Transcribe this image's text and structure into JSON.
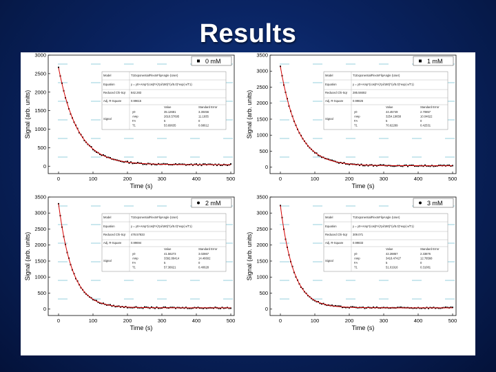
{
  "slide": {
    "title": "Results"
  },
  "colors": {
    "background": "#0a2463",
    "fit_line": "#d40000",
    "data_points": "#000000",
    "faint_label": "#9fd3e0"
  },
  "chart_data": [
    {
      "type": "line",
      "legend": "0 mM",
      "legend_marker": "square",
      "xlabel": "Time (s)",
      "ylabel": "Signal (arb. units)",
      "xlim": [
        -30,
        510
      ],
      "ylim": [
        -200,
        3000
      ],
      "x_ticks": [
        0,
        100,
        200,
        300,
        400,
        500
      ],
      "y_ticks": [
        0,
        500,
        1000,
        1500,
        2000,
        2500,
        3000
      ],
      "model": {
        "y0": 40,
        "amp": 2620,
        "t1": 55
      },
      "fit_table": {
        "model_label": "Model",
        "model_value": "T1ExponentialFlexInFlipAngle (User)",
        "equation_label": "Equation",
        "equation_value": "y = y0+Amp*(cos(FA)*pi/180)^(x/5.0)*exp(-x/T1)",
        "chi_label": "Reduced Chi-Sqr",
        "chi_value": "842.283",
        "r2_label": "Adj. R-Square",
        "r2_value": "0.99615",
        "value_header": "Value",
        "error_header": "Standard Error",
        "signal_label": "Signal",
        "params": [
          {
            "name": "y0",
            "value": "35.12681",
            "error": "3.30456"
          },
          {
            "name": "Amp",
            "value": "2616.57695",
            "error": "11.1935"
          },
          {
            "name": "FA",
            "value": "5",
            "error": "0"
          },
          {
            "name": "T1",
            "value": "53.69635",
            "error": "0.68612"
          }
        ]
      }
    },
    {
      "type": "line",
      "legend": "1 mM",
      "legend_marker": "square",
      "xlabel": "Time (s)",
      "ylabel": "Signal (arb. units)",
      "xlim": [
        -30,
        510
      ],
      "ylim": [
        -200,
        3500
      ],
      "x_ticks": [
        0,
        100,
        200,
        300,
        400,
        500
      ],
      "y_ticks": [
        0,
        500,
        1000,
        1500,
        2000,
        2500,
        3000,
        3500
      ],
      "model": {
        "y0": 45,
        "amp": 3100,
        "t1": 50
      },
      "fit_table": {
        "model_label": "Model",
        "model_value": "T1ExponentialFlexInFlipAngle (User)",
        "equation_label": "Equation",
        "equation_value": "y = y0+Amp*(cos(FA)*pi/180)^(x/5.0)*exp(-x/T1)",
        "chi_label": "Reduced Chi-Sqr",
        "chi_value": "285.58482",
        "r2_label": "Adj. R-Square",
        "r2_value": "0.99826",
        "value_header": "Value",
        "error_header": "Standard Error",
        "signal_label": "Signal",
        "params": [
          {
            "name": "y0",
            "value": "44.45749",
            "error": "2.70857"
          },
          {
            "name": "Amp",
            "value": "3254.19658",
            "error": "10.04622"
          },
          {
            "name": "FA",
            "value": "5",
            "error": "0"
          },
          {
            "name": "T1",
            "value": "70.62289",
            "error": "0.42531"
          }
        ]
      }
    },
    {
      "type": "line",
      "legend": "2 mM",
      "legend_marker": "circle",
      "xlabel": "Time (s)",
      "ylabel": "Signal (arb. units)",
      "xlim": [
        -30,
        510
      ],
      "ylim": [
        -200,
        3500
      ],
      "x_ticks": [
        0,
        100,
        200,
        300,
        400,
        500
      ],
      "y_ticks": [
        0,
        500,
        1000,
        1500,
        2000,
        2500,
        3000,
        3500
      ],
      "model": {
        "y0": 40,
        "amp": 3250,
        "t1": 40
      },
      "fit_table": {
        "model_label": "Model",
        "model_value": "T1ExponentialFlexInFlipAngle (User)",
        "equation_label": "Equation",
        "equation_value": "y = y0+Amp*(cos(FA)*pi/180)^(x/5.0)*exp(-x/T1)",
        "chi_label": "Reduced Chi-Sqr",
        "chi_value": "478.57833",
        "r2_label": "Adj. R-Square",
        "r2_value": "0.99694",
        "value_header": "Value",
        "error_header": "Standard Error",
        "signal_label": "Signal",
        "params": [
          {
            "name": "y0",
            "value": "41.56273",
            "error": "3.02867"
          },
          {
            "name": "Amp",
            "value": "3392.86414",
            "error": "14.46602"
          },
          {
            "name": "FA",
            "value": "5",
            "error": "0"
          },
          {
            "name": "T1",
            "value": "57.36621",
            "error": "0.40628"
          }
        ]
      }
    },
    {
      "type": "line",
      "legend": "3 mM",
      "legend_marker": "circle",
      "xlabel": "Time (s)",
      "ylabel": "Signal (arb. units)",
      "xlim": [
        -30,
        510
      ],
      "ylim": [
        -200,
        3500
      ],
      "x_ticks": [
        0,
        100,
        200,
        300,
        400,
        500
      ],
      "y_ticks": [
        0,
        500,
        1000,
        1500,
        2000,
        2500,
        3000,
        3500
      ],
      "model": {
        "y0": 40,
        "amp": 3200,
        "t1": 38
      },
      "fit_table": {
        "model_label": "Model",
        "model_value": "T1ExponentialFlexInFlipAngle (User)",
        "equation_label": "Equation",
        "equation_value": "y = y0+Amp*(cos(FA)*pi/180)^(x/5.0)*exp(-x/T1)",
        "chi_label": "Reduced Chi-Sqr",
        "chi_value": "309.071",
        "r2_label": "Adj. R-Square",
        "r2_value": "0.99833",
        "value_header": "Value",
        "error_header": "Standard Error",
        "signal_label": "Signal",
        "params": [
          {
            "name": "y0",
            "value": "42.28857",
            "error": "2.33876"
          },
          {
            "name": "Amp",
            "value": "3418.47427",
            "error": "12.78568"
          },
          {
            "name": "FA",
            "value": "5",
            "error": "0"
          },
          {
            "name": "T1",
            "value": "51.01916",
            "error": "0.31081"
          }
        ]
      }
    }
  ]
}
